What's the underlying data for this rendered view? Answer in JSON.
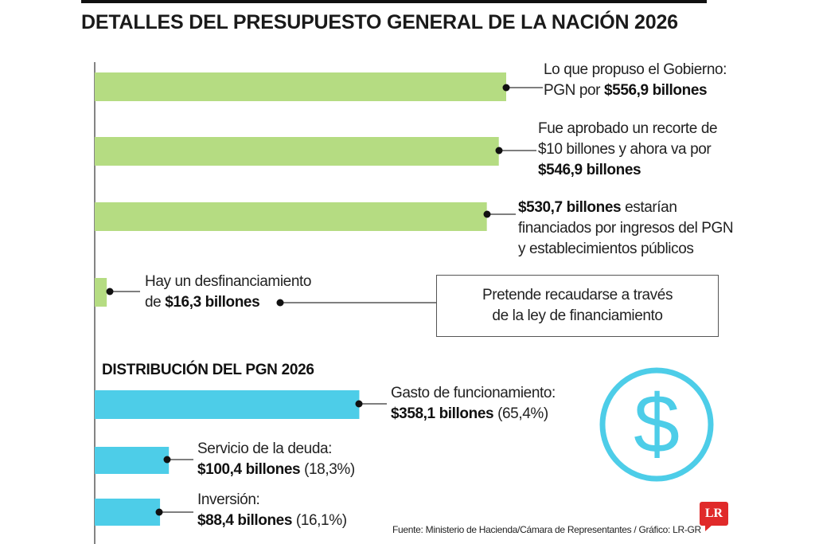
{
  "title": "DETALLES DEL PRESUPUESTO GENERAL DE LA NACIÓN 2026",
  "colors": {
    "budget_bar": "#b5dc82",
    "distribution_bar": "#4dcde8",
    "icon": "#4dcde8",
    "logo": "#e02a2a"
  },
  "labels": {
    "gobierno_line1": "Lo que propuso el Gobierno:",
    "gobierno_line2_pre": "PGN por ",
    "gobierno_value": "$556,9 billones",
    "aprobado_line1": "Fue aprobado un recorte de",
    "aprobado_line2": "$10 billones y ahora va por",
    "aprobado_value": "$546,9 billones",
    "financiado_value": "$530,7 billones",
    "financiado_line1_post": " estarían",
    "financiado_line2": "financiados por ingresos del PGN",
    "financiado_line3": "y establecimientos públicos",
    "desfinanciamiento_line1": "Hay un desfinanciamiento",
    "desfinanciamiento_pre": "de ",
    "desfinanciamiento_value": "$16,3 billones",
    "box_line1": "Pretende recaudarse a través",
    "box_line2": "de la ley de financiamiento",
    "section_title": "DISTRIBUCIÓN DEL PGN 2026",
    "funcionamiento_line1": "Gasto de funcionamiento:",
    "funcionamiento_value": "$358,1 billones",
    "funcionamiento_pct": " (65,4%)",
    "deuda_line1": "Servicio de la deuda:",
    "deuda_value": "$100,4 billones",
    "deuda_pct": " (18,3%)",
    "inversion_line1": "Inversión:",
    "inversion_value": "$88,4 billones",
    "inversion_pct": " (16,1%)",
    "source": "Fuente: Ministerio de Hacienda/Cámara de Representantes / Gráfico: LR-GR",
    "logo_text": "LR"
  },
  "chart_data": [
    {
      "type": "bar",
      "orientation": "horizontal",
      "categories": [
        "Propuesta del Gobierno",
        "Aprobado tras recorte",
        "Financiado",
        "Desfinanciamiento"
      ],
      "values": [
        556.9,
        546.9,
        530.7,
        16.3
      ],
      "unit": "billones"
    },
    {
      "type": "bar",
      "orientation": "horizontal",
      "title": "DISTRIBUCIÓN DEL PGN 2026",
      "categories": [
        "Gasto de funcionamiento",
        "Servicio de la deuda",
        "Inversión"
      ],
      "values": [
        358.1,
        100.4,
        88.4
      ],
      "percentages": [
        65.4,
        18.3,
        16.1
      ],
      "unit": "billones"
    }
  ]
}
